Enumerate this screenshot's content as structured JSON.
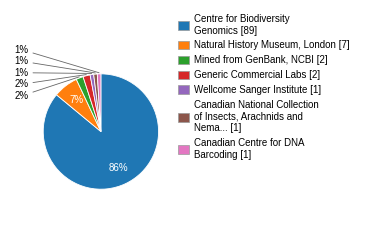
{
  "chart_data": {
    "type": "pie",
    "categories": [
      "Centre for Biodiversity\nGenomics [89]",
      "Natural History Museum, London [7]",
      "Mined from GenBank, NCBI [2]",
      "Generic Commercial Labs [2]",
      "Wellcome Sanger Institute [1]",
      "Canadian National Collection\nof Insects, Arachnids and\nNema... [1]",
      "Canadian Centre for DNA\nBarcoding [1]"
    ],
    "values": [
      86,
      7,
      2,
      2,
      1,
      1,
      1
    ],
    "value_labels": [
      "86%",
      "7%",
      "2%",
      "2%",
      "1%",
      "1%",
      "1%"
    ],
    "data_labels": true,
    "legend": "upper left"
  }
}
